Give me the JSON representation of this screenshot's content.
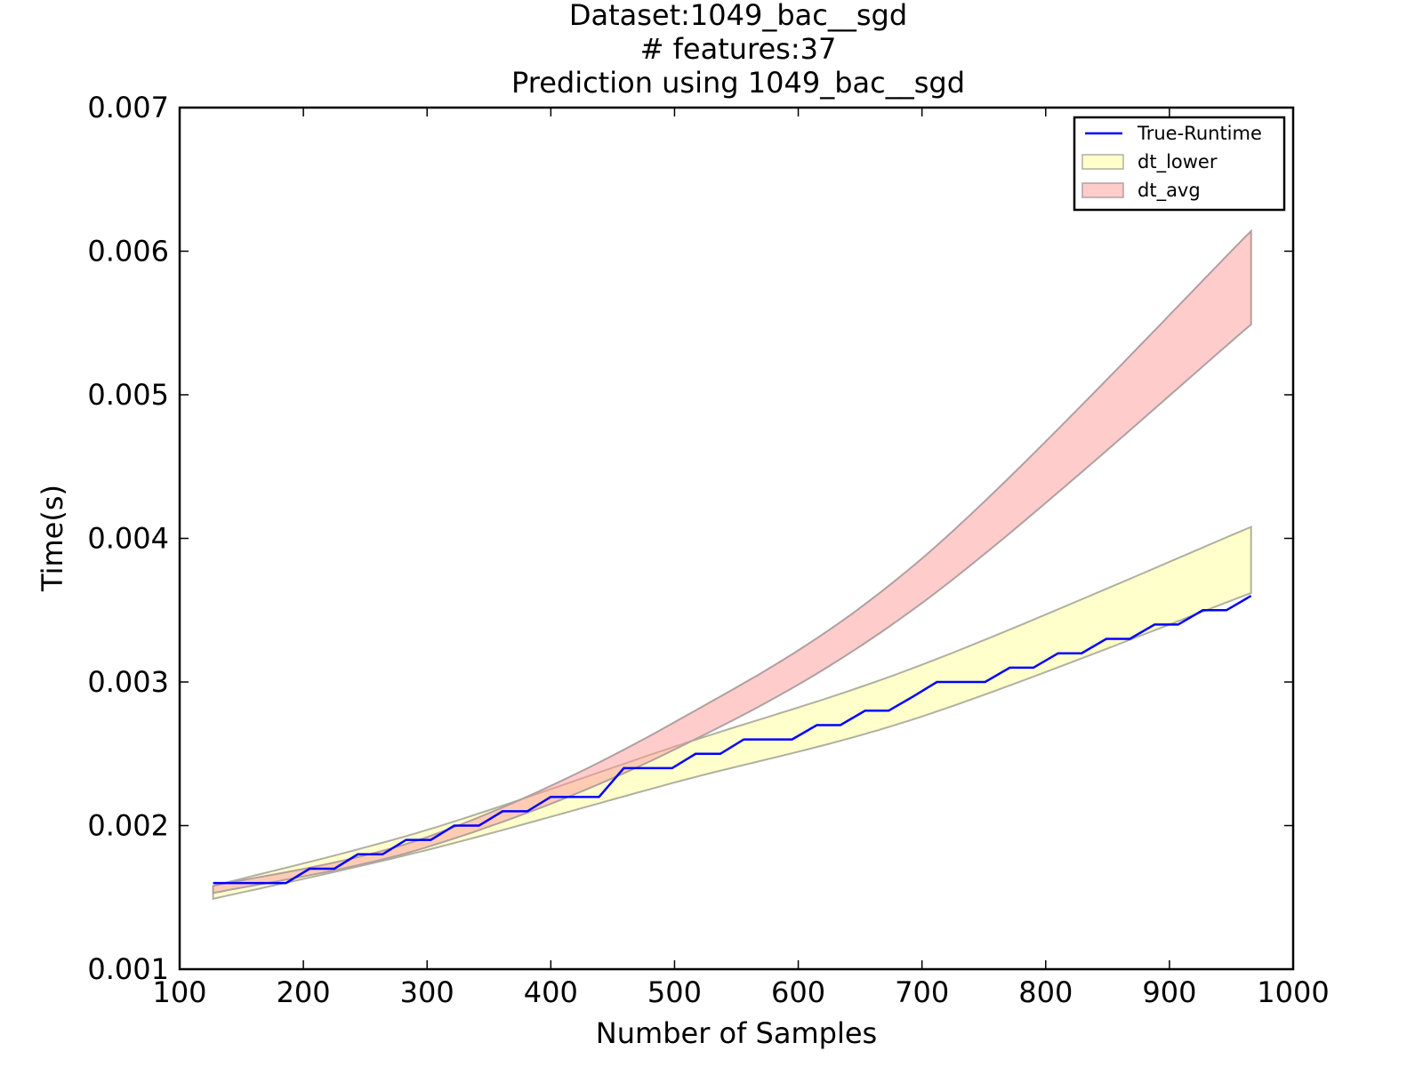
{
  "title_lines": [
    "Dataset:1049_bac__sgd",
    "# features:37",
    "Prediction using 1049_bac__sgd"
  ],
  "chart_data": {
    "type": "line",
    "title": "Dataset:1049_bac__sgd\n# features:37\nPrediction using 1049_bac__sgd",
    "xlabel": "Number of Samples",
    "ylabel": "Time(s)",
    "xlim": [
      100,
      1000
    ],
    "ylim": [
      0.001,
      0.007
    ],
    "xticks": [
      100,
      200,
      300,
      400,
      500,
      600,
      700,
      800,
      900,
      1000
    ],
    "yticks": [
      0.001,
      0.002,
      0.003,
      0.004,
      0.005,
      0.006,
      0.007
    ],
    "xtick_labels": [
      "100",
      "200",
      "300",
      "400",
      "500",
      "600",
      "700",
      "800",
      "900",
      "1000"
    ],
    "ytick_labels": [
      "0.001",
      "0.002",
      "0.003",
      "0.004",
      "0.005",
      "0.006",
      "0.007"
    ],
    "grid": false,
    "legend": {
      "position": "top-right",
      "entries": [
        "True-Runtime",
        "dt_lower",
        "dt_avg"
      ]
    },
    "series": [
      {
        "name": "True-Runtime",
        "kind": "line",
        "color": "#0000ff",
        "x": [
          127,
          147,
          166,
          186,
          205,
          225,
          244,
          264,
          283,
          303,
          322,
          342,
          361,
          381,
          400,
          420,
          439,
          459,
          478,
          498,
          517,
          537,
          556,
          576,
          595,
          615,
          634,
          654,
          673,
          693,
          712,
          732,
          751,
          771,
          790,
          810,
          829,
          849,
          868,
          888,
          907,
          927,
          946,
          966
        ],
        "y": [
          0.0016,
          0.0016,
          0.0016,
          0.0016,
          0.0017,
          0.0017,
          0.0018,
          0.0018,
          0.0019,
          0.0019,
          0.002,
          0.002,
          0.0021,
          0.0021,
          0.0022,
          0.0022,
          0.0022,
          0.0024,
          0.0024,
          0.0024,
          0.0025,
          0.0025,
          0.0026,
          0.0026,
          0.0026,
          0.0027,
          0.0027,
          0.0028,
          0.0028,
          0.0029,
          0.003,
          0.003,
          0.003,
          0.0031,
          0.0031,
          0.0032,
          0.0032,
          0.0033,
          0.0033,
          0.0034,
          0.0034,
          0.0035,
          0.0035,
          0.0036
        ]
      },
      {
        "name": "dt_lower",
        "kind": "band",
        "fill": "#ffff99",
        "fill_opacity": 0.5,
        "edge": "#b0b0a0",
        "x": [
          127,
          300,
          500,
          700,
          966
        ],
        "lower": [
          0.00149,
          0.00183,
          0.0023,
          0.00276,
          0.00362
        ],
        "upper": [
          0.00158,
          0.00197,
          0.00255,
          0.00312,
          0.00408
        ]
      },
      {
        "name": "dt_avg",
        "kind": "band",
        "fill": "#ff9999",
        "fill_opacity": 0.5,
        "edge": "#b0a0a0",
        "x": [
          127,
          300,
          500,
          700,
          966
        ],
        "lower": [
          0.00153,
          0.00185,
          0.00253,
          0.00355,
          0.00549
        ],
        "upper": [
          0.00158,
          0.00192,
          0.00272,
          0.00386,
          0.00614
        ]
      }
    ]
  }
}
